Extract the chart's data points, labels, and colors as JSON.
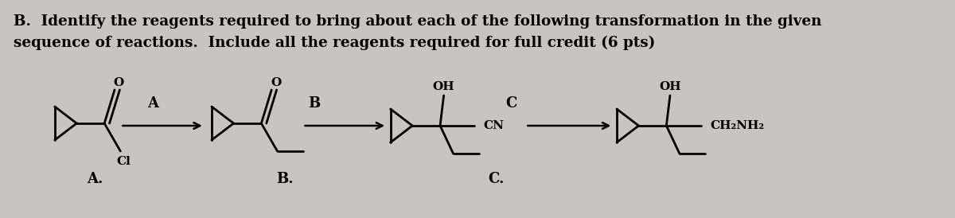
{
  "background_color": "#c8c5c0",
  "title_line1": "B.  Identify the reagents required to bring about each of the following transformation in the given",
  "title_line2": "sequence of reactions.  Include all the reagents required for full credit (6 pts)",
  "title_fontsize": 13.2,
  "label_A": "A",
  "label_B": "B",
  "label_C": "C",
  "label_A_dot": "A.",
  "label_B_dot": "B.",
  "label_C_dot": "C.",
  "mol1_Cl": "Cl",
  "mol2_OH": "OH",
  "mol2_CN": "CN",
  "mol3_OH": "OH",
  "mol3_CH2NH2": "CH₂NH₂"
}
